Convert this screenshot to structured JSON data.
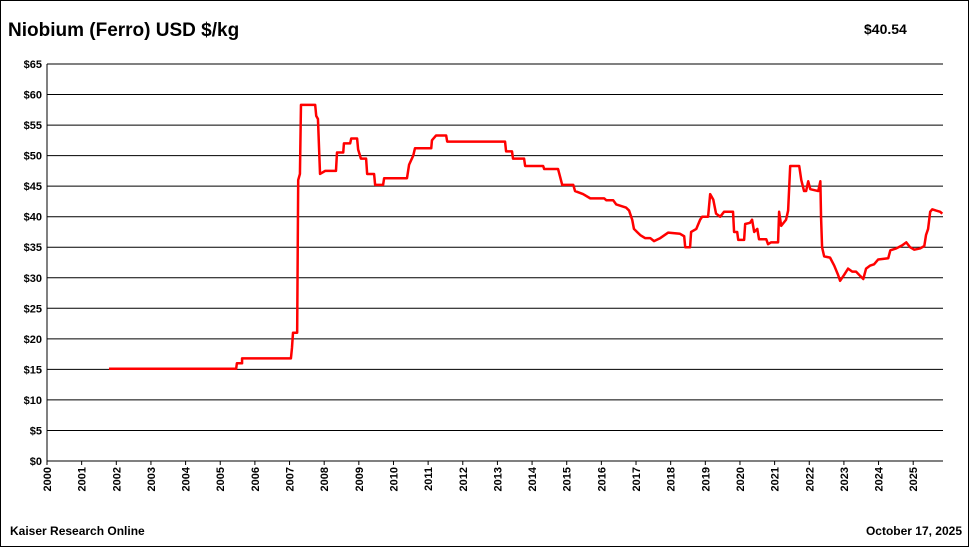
{
  "chart_data": {
    "type": "line",
    "title": "Niobium (Ferro) USD $/kg",
    "current_price": "$40.54",
    "source": "Kaiser Research Online",
    "date": "October 17, 2025",
    "xlim": [
      2000,
      2025.86
    ],
    "xticks": [
      2000,
      2001,
      2002,
      2003,
      2004,
      2005,
      2006,
      2007,
      2008,
      2009,
      2010,
      2011,
      2012,
      2013,
      2014,
      2015,
      2016,
      2017,
      2018,
      2019,
      2020,
      2021,
      2022,
      2023,
      2024,
      2025
    ],
    "ylim": [
      0,
      65
    ],
    "yticks": [
      {
        "value": 0,
        "label": "$0"
      },
      {
        "value": 5,
        "label": "$5"
      },
      {
        "value": 10,
        "label": "$10"
      },
      {
        "value": 15,
        "label": "$15"
      },
      {
        "value": 20,
        "label": "$20"
      },
      {
        "value": 25,
        "label": "$25"
      },
      {
        "value": 30,
        "label": "$30"
      },
      {
        "value": 35,
        "label": "$35"
      },
      {
        "value": 40,
        "label": "$40"
      },
      {
        "value": 45,
        "label": "$45"
      },
      {
        "value": 50,
        "label": "$50"
      },
      {
        "value": 55,
        "label": "$55"
      },
      {
        "value": 60,
        "label": "$60"
      },
      {
        "value": 65,
        "label": "$65"
      }
    ],
    "grid": true,
    "series": [
      {
        "color": "#ff0000",
        "x": [
          2001.79,
          2005.46,
          2005.48,
          2005.63,
          2005.63,
          2007.04,
          2007.07,
          2007.1,
          2007.22,
          2007.25,
          2007.3,
          2007.33,
          2007.74,
          2007.77,
          2007.82,
          2007.85,
          2007.88,
          2008.03,
          2008.34,
          2008.37,
          2008.55,
          2008.57,
          2008.75,
          2008.78,
          2008.95,
          2008.98,
          2009.06,
          2009.21,
          2009.24,
          2009.44,
          2009.47,
          2009.7,
          2009.73,
          2010.39,
          2010.45,
          2010.57,
          2010.62,
          2011.09,
          2011.11,
          2011.23,
          2011.52,
          2011.55,
          2013.22,
          2013.25,
          2013.42,
          2013.45,
          2013.77,
          2013.8,
          2014.32,
          2014.35,
          2014.75,
          2014.81,
          2014.87,
          2015.19,
          2015.24,
          2015.47,
          2015.68,
          2016.08,
          2016.14,
          2016.34,
          2016.43,
          2016.71,
          2016.8,
          2016.89,
          2016.94,
          2017.12,
          2017.26,
          2017.41,
          2017.52,
          2017.7,
          2017.93,
          2018.27,
          2018.39,
          2018.42,
          2018.56,
          2018.59,
          2018.74,
          2018.85,
          2018.91,
          2019.08,
          2019.14,
          2019.23,
          2019.31,
          2019.43,
          2019.54,
          2019.8,
          2019.83,
          2019.92,
          2019.95,
          2020.12,
          2020.15,
          2020.29,
          2020.35,
          2020.41,
          2020.5,
          2020.55,
          2020.76,
          2020.81,
          2020.9,
          2021.1,
          2021.13,
          2021.19,
          2021.33,
          2021.39,
          2021.45,
          2021.71,
          2021.77,
          2021.85,
          2021.91,
          2021.97,
          2022.03,
          2022.26,
          2022.32,
          2022.34,
          2022.37,
          2022.43,
          2022.6,
          2022.72,
          2022.83,
          2022.89,
          2023.01,
          2023.12,
          2023.24,
          2023.35,
          2023.47,
          2023.56,
          2023.64,
          2023.76,
          2023.87,
          2023.99,
          2024.28,
          2024.34,
          2024.51,
          2024.68,
          2024.8,
          2024.91,
          2025.03,
          2025.2,
          2025.32,
          2025.37,
          2025.43,
          2025.49,
          2025.55,
          2025.66,
          2025.78,
          2025.84
        ],
        "values": [
          15.1,
          15.1,
          16,
          16,
          16.8,
          16.8,
          18.5,
          21,
          21,
          46,
          47,
          58.3,
          58.3,
          56.5,
          56,
          51.5,
          47,
          47.5,
          47.5,
          50.5,
          50.5,
          52,
          52,
          52.8,
          52.8,
          51,
          49.5,
          49.5,
          47,
          47,
          45.2,
          45.2,
          46.3,
          46.3,
          48.5,
          50,
          51.2,
          51.2,
          52.5,
          53.3,
          53.3,
          52.3,
          52.3,
          50.7,
          50.7,
          49.5,
          49.5,
          48.3,
          48.3,
          47.8,
          47.8,
          46.5,
          45.2,
          45.2,
          44.2,
          43.7,
          43,
          43,
          42.7,
          42.7,
          42,
          41.5,
          41,
          39.5,
          38,
          37,
          36.5,
          36.5,
          36,
          36.5,
          37.4,
          37.2,
          36.8,
          35,
          35,
          37.5,
          38,
          39.5,
          40,
          40,
          43.7,
          42.8,
          40.5,
          40,
          40.8,
          40.8,
          37.5,
          37.5,
          36.2,
          36.2,
          38.8,
          39,
          39.5,
          37.5,
          38,
          36.3,
          36.3,
          35.5,
          35.8,
          35.8,
          40.8,
          38.5,
          39.5,
          41,
          48.3,
          48.3,
          46,
          44.2,
          44.2,
          45.8,
          44.5,
          44.2,
          45.8,
          40,
          35,
          33.5,
          33.3,
          32,
          30.5,
          29.5,
          30.5,
          31.5,
          31,
          31,
          30.3,
          29.8,
          31.5,
          32,
          32.2,
          33,
          33.2,
          34.5,
          34.8,
          35.3,
          35.8,
          35,
          34.6,
          34.8,
          35.2,
          37,
          38,
          40.8,
          41.2,
          41,
          40.8,
          40.5
        ]
      }
    ]
  }
}
